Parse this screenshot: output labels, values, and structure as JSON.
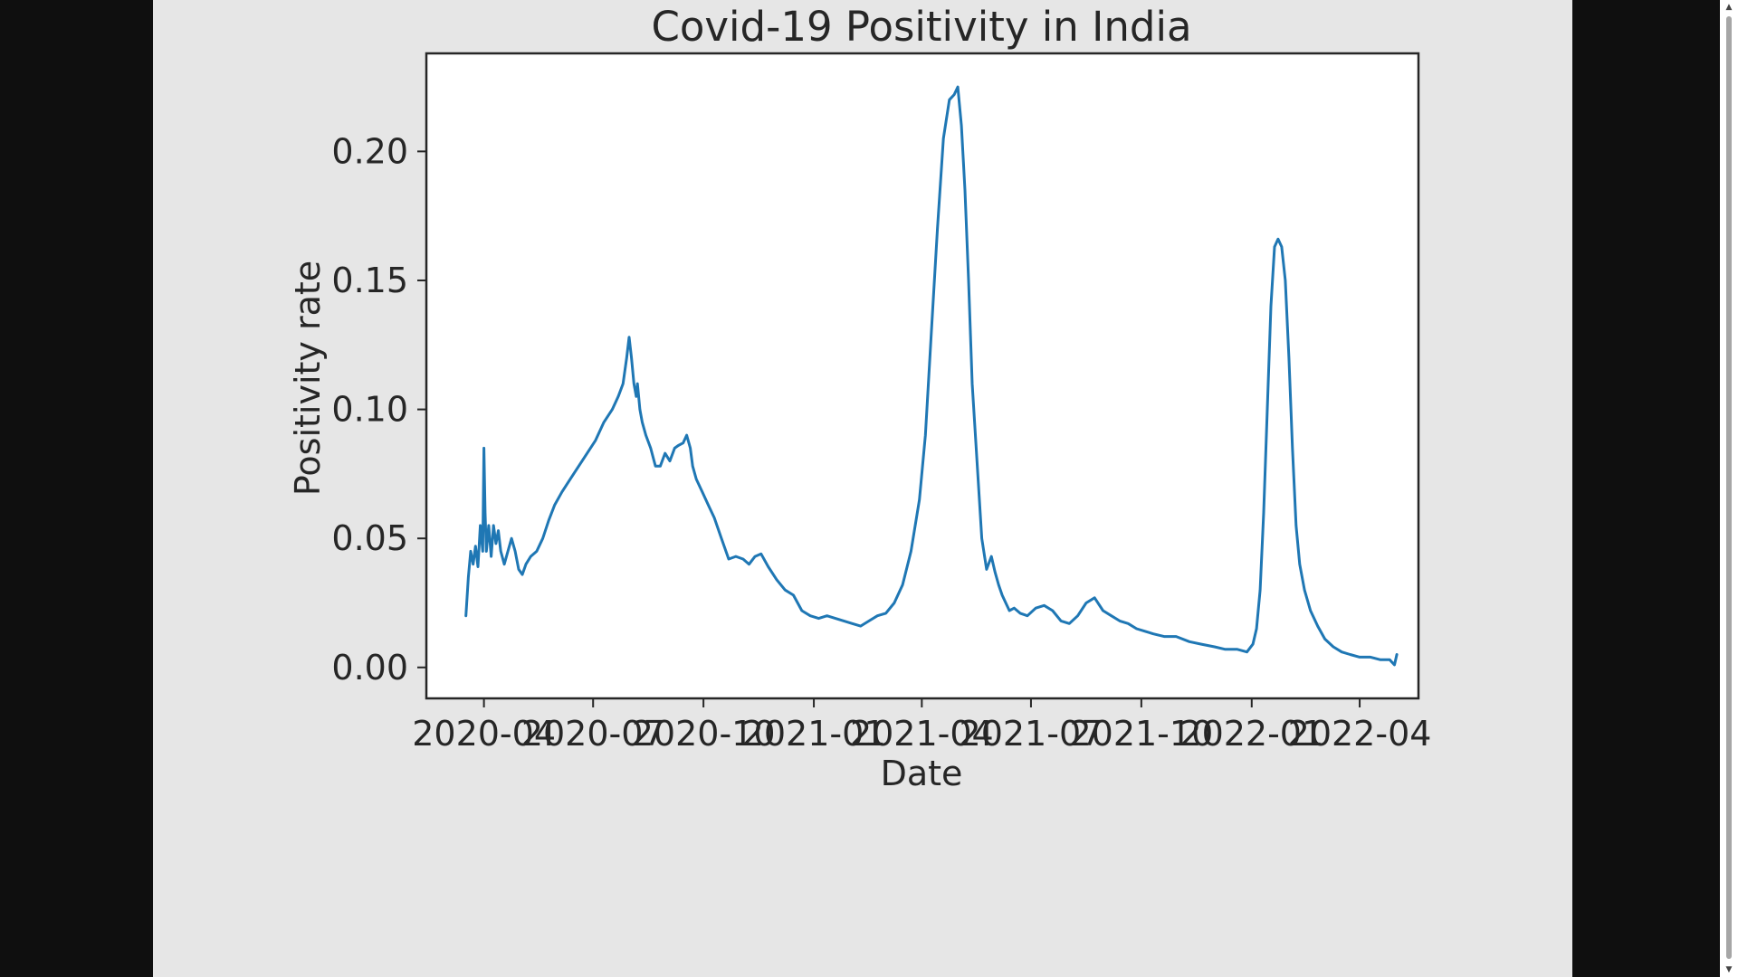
{
  "chart_data": {
    "type": "line",
    "title": "Covid-19 Positivity in India",
    "xlabel": "Date",
    "ylabel": "Positivity rate",
    "x_ticks": [
      "2020-04",
      "2020-07",
      "2020-10",
      "2021-01",
      "2021-04",
      "2021-07",
      "2021-10",
      "2022-01",
      "2022-04"
    ],
    "y_ticks": [
      "0.00",
      "0.05",
      "0.10",
      "0.15",
      "0.20"
    ],
    "xlim": [
      "2020-02-13",
      "2022-05-20"
    ],
    "ylim": [
      -0.012,
      0.238
    ],
    "grid": false,
    "line_color": "#1f77b4",
    "series": [
      {
        "x": [
          "2020-03-17",
          "2020-03-19",
          "2020-03-21",
          "2020-03-23",
          "2020-03-25",
          "2020-03-27",
          "2020-03-29",
          "2020-03-31",
          "2020-04-01",
          "2020-04-02",
          "2020-04-03",
          "2020-04-05",
          "2020-04-07",
          "2020-04-09",
          "2020-04-11",
          "2020-04-13",
          "2020-04-15",
          "2020-04-18",
          "2020-04-21",
          "2020-04-24",
          "2020-04-27",
          "2020-04-30",
          "2020-05-03",
          "2020-05-06",
          "2020-05-10",
          "2020-05-15",
          "2020-05-20",
          "2020-05-25",
          "2020-05-30",
          "2020-06-05",
          "2020-06-12",
          "2020-06-19",
          "2020-06-26",
          "2020-07-03",
          "2020-07-10",
          "2020-07-17",
          "2020-07-22",
          "2020-07-26",
          "2020-07-29",
          "2020-07-31",
          "2020-08-02",
          "2020-08-04",
          "2020-08-06",
          "2020-08-07",
          "2020-08-09",
          "2020-08-11",
          "2020-08-14",
          "2020-08-18",
          "2020-08-22",
          "2020-08-26",
          "2020-08-30",
          "2020-09-03",
          "2020-09-07",
          "2020-09-10",
          "2020-09-14",
          "2020-09-17",
          "2020-09-20",
          "2020-09-22",
          "2020-09-25",
          "2020-09-30",
          "2020-10-05",
          "2020-10-10",
          "2020-10-16",
          "2020-10-22",
          "2020-10-28",
          "2020-11-03",
          "2020-11-08",
          "2020-11-13",
          "2020-11-18",
          "2020-11-24",
          "2020-12-01",
          "2020-12-08",
          "2020-12-15",
          "2020-12-22",
          "2020-12-29",
          "2021-01-05",
          "2021-01-12",
          "2021-01-19",
          "2021-01-26",
          "2021-02-02",
          "2021-02-09",
          "2021-02-16",
          "2021-02-23",
          "2021-03-02",
          "2021-03-09",
          "2021-03-16",
          "2021-03-23",
          "2021-03-30",
          "2021-04-04",
          "2021-04-09",
          "2021-04-14",
          "2021-04-19",
          "2021-04-24",
          "2021-04-28",
          "2021-05-01",
          "2021-05-04",
          "2021-05-07",
          "2021-05-10",
          "2021-05-13",
          "2021-05-17",
          "2021-05-21",
          "2021-05-25",
          "2021-05-29",
          "2021-06-01",
          "2021-06-04",
          "2021-06-07",
          "2021-06-10",
          "2021-06-13",
          "2021-06-17",
          "2021-06-22",
          "2021-06-28",
          "2021-07-05",
          "2021-07-12",
          "2021-07-19",
          "2021-07-26",
          "2021-08-02",
          "2021-08-09",
          "2021-08-16",
          "2021-08-23",
          "2021-08-30",
          "2021-09-06",
          "2021-09-13",
          "2021-09-20",
          "2021-09-27",
          "2021-10-04",
          "2021-10-11",
          "2021-10-20",
          "2021-10-30",
          "2021-11-10",
          "2021-11-20",
          "2021-12-01",
          "2021-12-10",
          "2021-12-20",
          "2021-12-28",
          "2022-01-02",
          "2022-01-05",
          "2022-01-08",
          "2022-01-11",
          "2022-01-14",
          "2022-01-17",
          "2022-01-20",
          "2022-01-23",
          "2022-01-26",
          "2022-01-29",
          "2022-02-01",
          "2022-02-04",
          "2022-02-07",
          "2022-02-10",
          "2022-02-14",
          "2022-02-19",
          "2022-02-25",
          "2022-03-03",
          "2022-03-10",
          "2022-03-17",
          "2022-03-24",
          "2022-04-01",
          "2022-04-10",
          "2022-04-18",
          "2022-04-26",
          "2022-04-28",
          "2022-04-30",
          "2022-05-02"
        ],
        "y": [
          0.02,
          0.035,
          0.045,
          0.04,
          0.047,
          0.039,
          0.055,
          0.045,
          0.085,
          0.06,
          0.045,
          0.055,
          0.043,
          0.055,
          0.048,
          0.053,
          0.045,
          0.04,
          0.045,
          0.05,
          0.045,
          0.038,
          0.036,
          0.04,
          0.043,
          0.045,
          0.05,
          0.057,
          0.063,
          0.068,
          0.073,
          0.078,
          0.083,
          0.088,
          0.095,
          0.1,
          0.105,
          0.11,
          0.12,
          0.128,
          0.12,
          0.11,
          0.105,
          0.11,
          0.1,
          0.095,
          0.09,
          0.085,
          0.078,
          0.078,
          0.083,
          0.08,
          0.085,
          0.086,
          0.087,
          0.09,
          0.085,
          0.078,
          0.073,
          0.068,
          0.063,
          0.058,
          0.05,
          0.042,
          0.043,
          0.042,
          0.04,
          0.043,
          0.044,
          0.039,
          0.034,
          0.03,
          0.028,
          0.022,
          0.02,
          0.019,
          0.02,
          0.019,
          0.018,
          0.017,
          0.016,
          0.018,
          0.02,
          0.021,
          0.025,
          0.032,
          0.045,
          0.065,
          0.09,
          0.13,
          0.17,
          0.205,
          0.22,
          0.222,
          0.225,
          0.21,
          0.185,
          0.15,
          0.11,
          0.08,
          0.05,
          0.038,
          0.043,
          0.037,
          0.032,
          0.028,
          0.025,
          0.022,
          0.023,
          0.021,
          0.02,
          0.023,
          0.024,
          0.022,
          0.018,
          0.017,
          0.02,
          0.025,
          0.027,
          0.022,
          0.02,
          0.018,
          0.017,
          0.015,
          0.014,
          0.013,
          0.012,
          0.012,
          0.01,
          0.009,
          0.008,
          0.007,
          0.007,
          0.006,
          0.009,
          0.015,
          0.03,
          0.06,
          0.1,
          0.14,
          0.163,
          0.166,
          0.163,
          0.15,
          0.12,
          0.085,
          0.055,
          0.04,
          0.03,
          0.022,
          0.016,
          0.011,
          0.008,
          0.006,
          0.005,
          0.004,
          0.004,
          0.003,
          0.003,
          0.002,
          0.001,
          0.005
        ]
      }
    ]
  }
}
